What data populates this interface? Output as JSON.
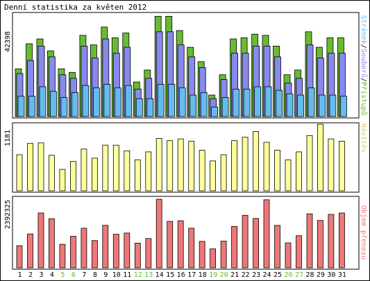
{
  "chart_data": {
    "type": "bar",
    "title": "Denní statistika za květen 2012",
    "categories": [
      "1",
      "2",
      "3",
      "4",
      "5",
      "6",
      "7",
      "8",
      "9",
      "10",
      "11",
      "12",
      "13",
      "14",
      "15",
      "16",
      "17",
      "18",
      "19",
      "20",
      "21",
      "22",
      "23",
      "24",
      "25",
      "26",
      "27",
      "28",
      "29",
      "30",
      "31"
    ],
    "weekend_days": [
      "5",
      "6",
      "12",
      "13",
      "19",
      "20",
      "26",
      "27"
    ],
    "panels": [
      {
        "id": "top",
        "ylabel_right": [
          "Stránek",
          "/",
          "Souborů",
          "/",
          "Přístupů"
        ],
        "ymax_label": "42398",
        "ylim": [
          0,
          42398
        ],
        "series": [
          {
            "name": "Přístupů",
            "color": "#66bb33",
            "values": [
              20000,
              30500,
              32500,
              27500,
              20000,
              18500,
              34000,
              30000,
              37500,
              33000,
              35000,
              14500,
              19500,
              42000,
              42000,
              36000,
              29000,
              23000,
              9000,
              17500,
              32500,
              33000,
              34500,
              34000,
              29500,
              17500,
              19500,
              35500,
              29000,
              33000,
              33000
            ]
          },
          {
            "name": "Souborů",
            "color": "#8888ee",
            "values": [
              18000,
              23500,
              29500,
              25000,
              17500,
              16000,
              29500,
              24500,
              32500,
              26500,
              29000,
              11500,
              16000,
              35500,
              35500,
              30000,
              25000,
              20500,
              7500,
              15500,
              26500,
              26500,
              29500,
              29500,
              25000,
              14000,
              16000,
              30000,
              24500,
              26500,
              26500
            ]
          },
          {
            "name": "Stránek",
            "color": "#66bbee",
            "values": [
              8500,
              8500,
              12500,
              10500,
              8000,
              10000,
              13000,
              12000,
              13500,
              12000,
              13000,
              7500,
              7500,
              13500,
              13500,
              12000,
              9000,
              10000,
              4000,
              8000,
              11500,
              11500,
              12500,
              12500,
              11000,
              9500,
              9000,
              12000,
              9000,
              9000,
              8500
            ]
          }
        ]
      },
      {
        "id": "middle",
        "ylabel_right": [
          "Návštěv"
        ],
        "ymax_label": "1181",
        "ylim": [
          0,
          1181
        ],
        "series": [
          {
            "name": "Návštěv",
            "color": "#ffff99",
            "values": [
              640,
              840,
              850,
              630,
              380,
              520,
              740,
              580,
              810,
              810,
              710,
              550,
              690,
              930,
              890,
              920,
              880,
              720,
              530,
              640,
              890,
              950,
              1050,
              860,
              720,
              550,
              690,
              980,
              1181,
              920,
              880
            ]
          }
        ]
      },
      {
        "id": "bottom",
        "ylabel_right": [
          "Objem přenosu"
        ],
        "ymax_label": "2392325",
        "ylim": [
          0,
          2392325
        ],
        "series": [
          {
            "name": "Objem přenosu",
            "color": "#ee7777",
            "values": [
              770000,
              1180000,
              1910000,
              1710000,
              820000,
              1100000,
              1380000,
              950000,
              1480000,
              1170000,
              1210000,
              860000,
              1020000,
              2390000,
              1620000,
              1640000,
              1380000,
              920000,
              660000,
              930000,
              1440000,
              1830000,
              1720000,
              2370000,
              1480000,
              870000,
              1120000,
              1880000,
              1650000,
              1860000,
              1910000
            ]
          }
        ]
      }
    ]
  }
}
